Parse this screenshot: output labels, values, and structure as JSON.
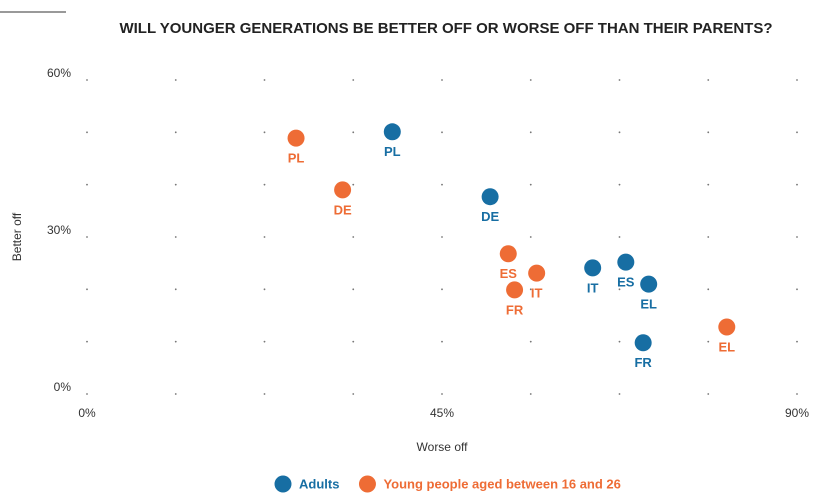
{
  "chart_data": {
    "type": "scatter",
    "title": "WILL YOUNGER GENERATIONS BE BETTER OFF OR WORSE OFF THAN THEIR PARENTS?",
    "xlabel": "Worse off",
    "ylabel": "Better off",
    "xlim": [
      0,
      90
    ],
    "ylim": [
      0,
      60
    ],
    "xticks": [
      {
        "value": 0,
        "label": "0%"
      },
      {
        "value": 45,
        "label": "45%"
      },
      {
        "value": 90,
        "label": "90%"
      }
    ],
    "yticks": [
      {
        "value": 0,
        "label": "0%"
      },
      {
        "value": 30,
        "label": "30%"
      },
      {
        "value": 60,
        "label": "60%"
      }
    ],
    "xgrid": [
      0,
      11.25,
      22.5,
      33.75,
      45,
      56.25,
      67.5,
      78.75,
      90
    ],
    "ygrid": [
      0,
      10,
      20,
      30,
      40,
      50,
      60
    ],
    "grid": true,
    "legend": "bottom",
    "series": [
      {
        "name": "Adults",
        "color": "#176ea3",
        "labels": [
          "PL",
          "DE",
          "IT",
          "ES",
          "EL",
          "FR"
        ],
        "x": [
          38.7,
          51.1,
          64.1,
          68.3,
          71.2,
          70.5
        ],
        "values": [
          50.1,
          37.7,
          24.1,
          25.2,
          21.0,
          9.8
        ]
      },
      {
        "name": "Young people aged between 16 and 26",
        "color": "#ee6c35",
        "labels": [
          "PL",
          "DE",
          "ES",
          "IT",
          "FR",
          "EL"
        ],
        "x": [
          26.5,
          32.4,
          53.4,
          57.0,
          54.2,
          81.1
        ],
        "values": [
          48.9,
          39.0,
          26.8,
          23.1,
          19.9,
          12.8
        ]
      }
    ]
  }
}
